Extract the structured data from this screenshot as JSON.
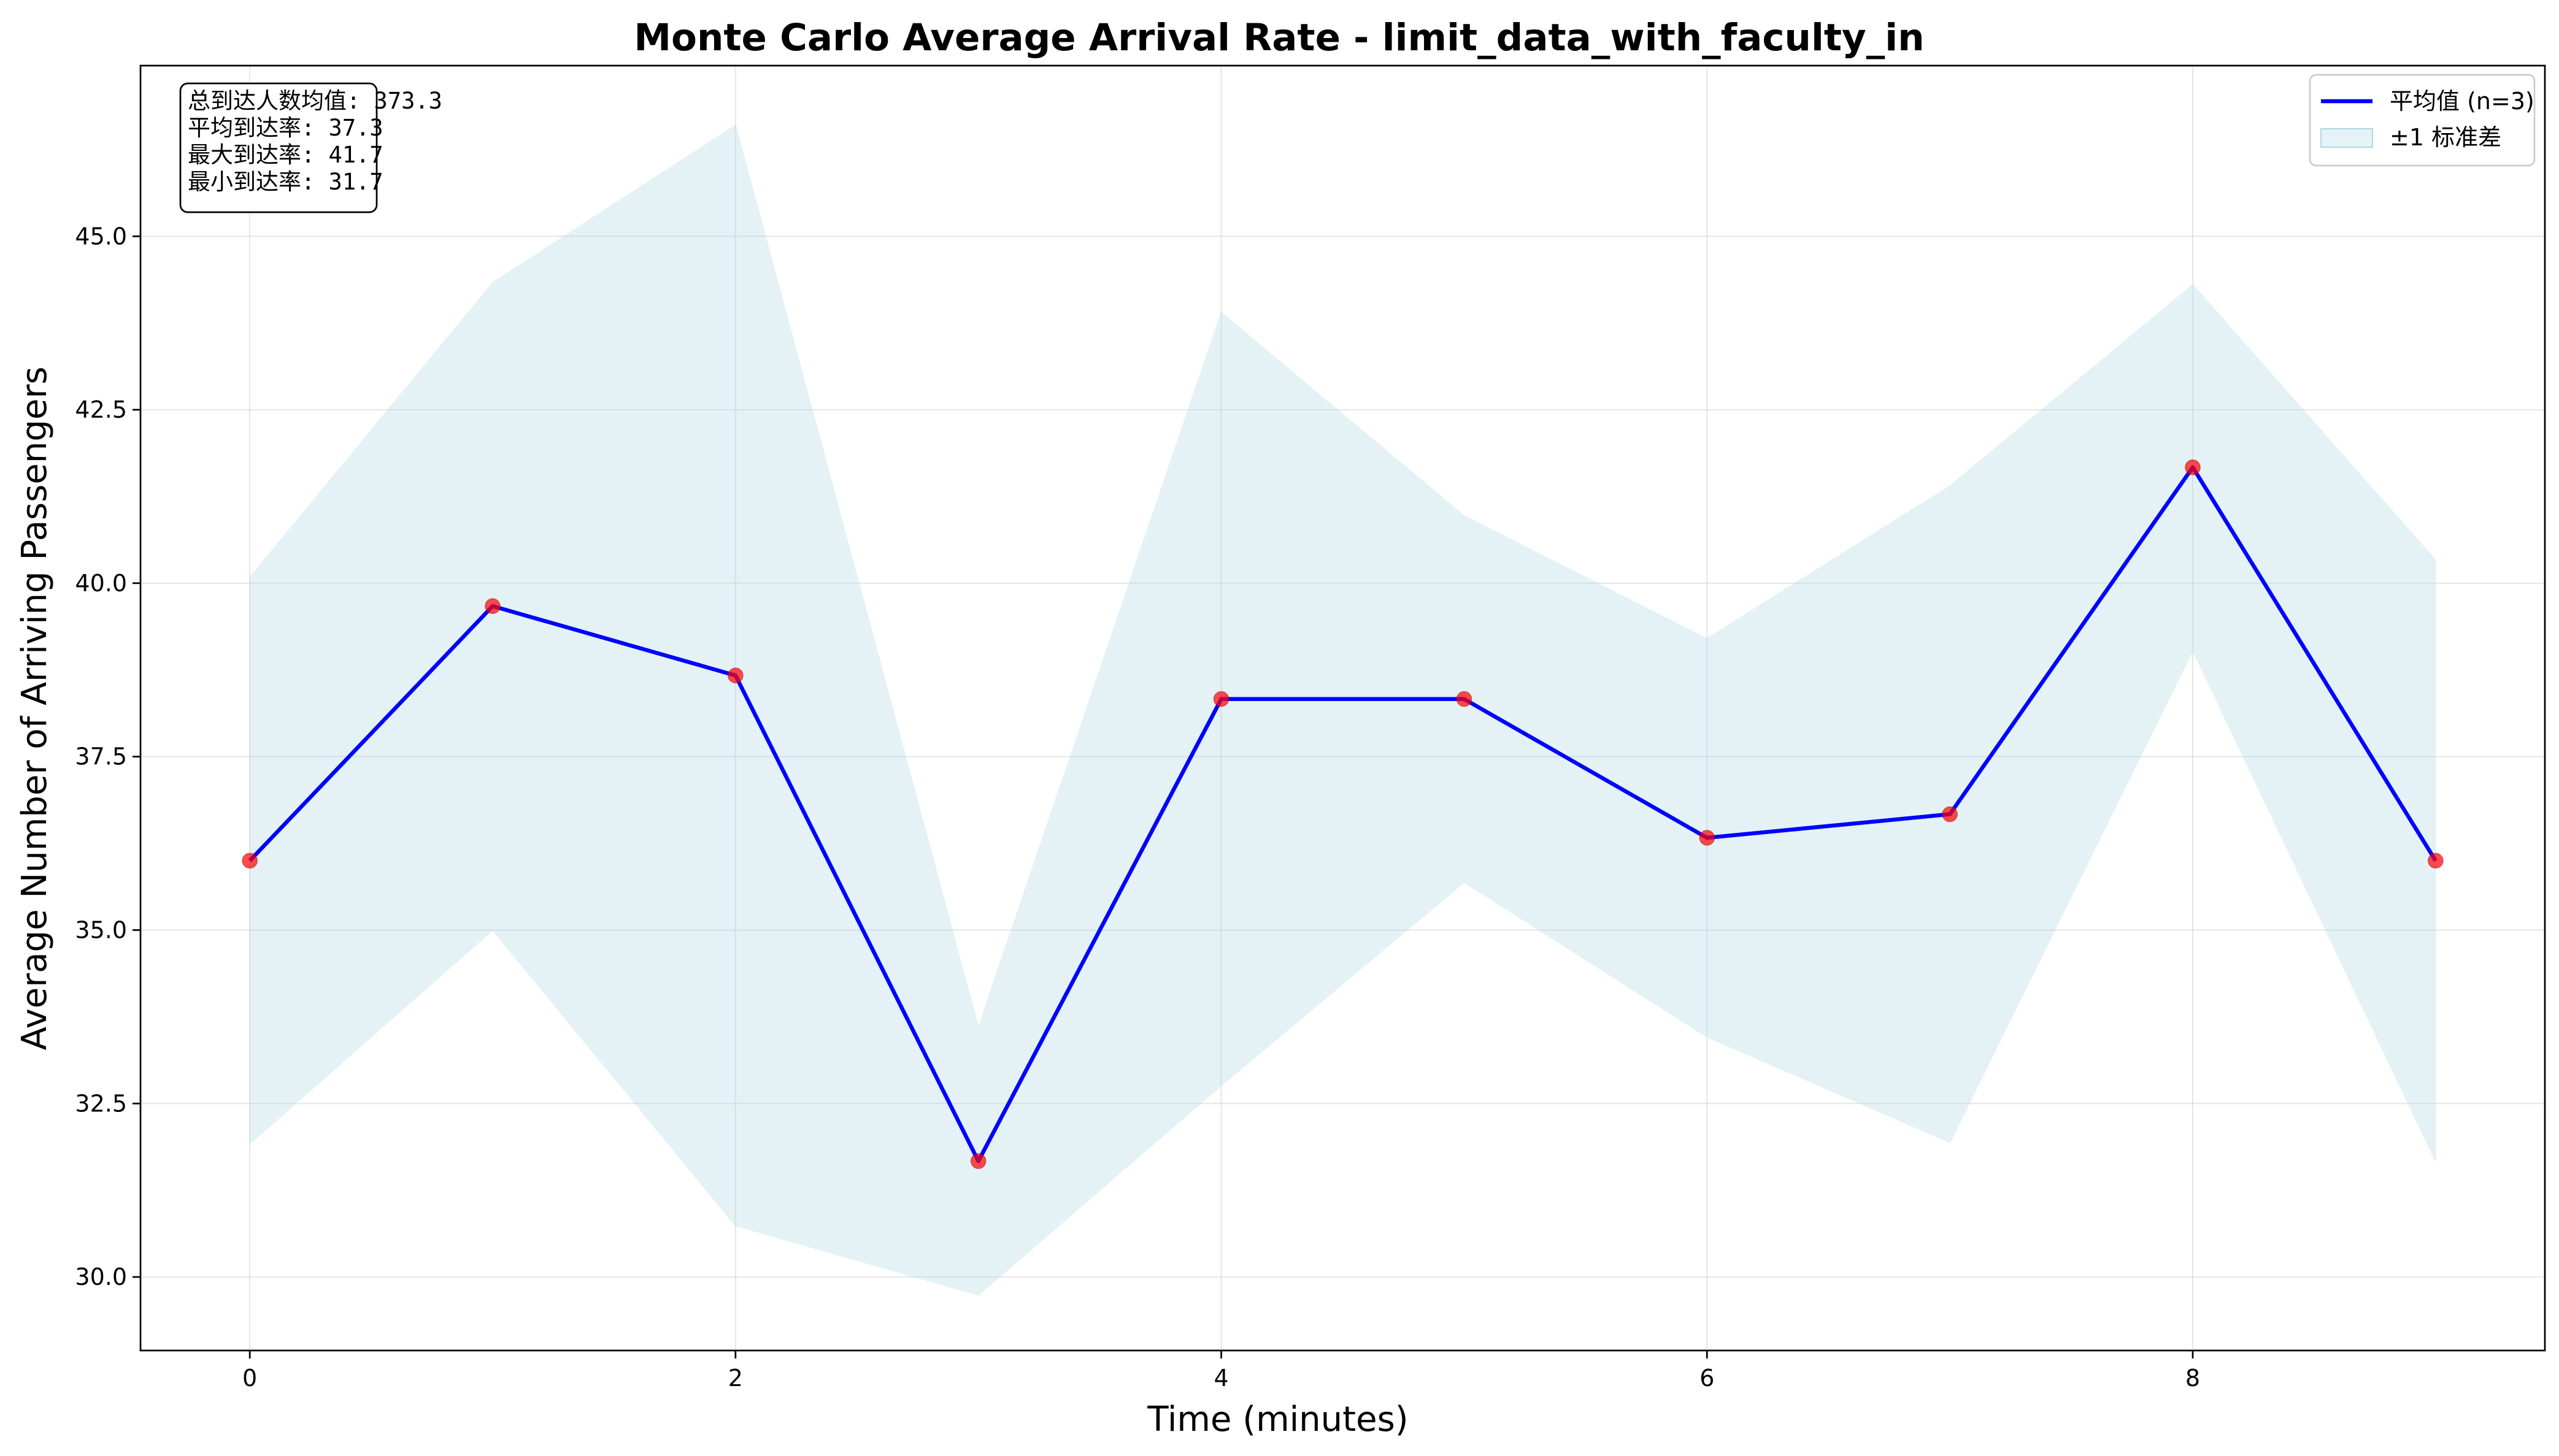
{
  "chart_data": {
    "type": "line",
    "title": "Monte Carlo Average Arrival Rate - limit_data_with_faculty_in",
    "xlabel": "Time (minutes)",
    "ylabel": "Average Number of Arriving Passengers",
    "xlim": [
      -0.45,
      9.45
    ],
    "ylim": [
      28.94,
      47.46
    ],
    "xticks": [
      0,
      2,
      4,
      6,
      8
    ],
    "yticks": [
      30.0,
      32.5,
      35.0,
      37.5,
      40.0,
      42.5,
      45.0
    ],
    "xtick_labels": [
      "0",
      "2",
      "4",
      "6",
      "8"
    ],
    "ytick_labels": [
      "30.0",
      "32.5",
      "35.0",
      "37.5",
      "40.0",
      "42.5",
      "45.0"
    ],
    "grid": true,
    "x": [
      0,
      1,
      2,
      3,
      4,
      5,
      6,
      7,
      8,
      9
    ],
    "series": [
      {
        "name": "平均值 (n=3)",
        "values": [
          36.0,
          39.67,
          38.67,
          31.67,
          38.33,
          38.33,
          36.33,
          36.67,
          41.67,
          36.0
        ],
        "color": "#0000ff",
        "marker_color": "#ff0000"
      }
    ],
    "band": {
      "name": "±1 标准差",
      "upper": [
        40.08,
        44.33,
        46.6,
        33.6,
        43.9,
        40.97,
        39.2,
        41.4,
        44.3,
        40.33
      ],
      "lower": [
        31.92,
        35.0,
        30.74,
        29.74,
        32.76,
        35.69,
        33.46,
        31.94,
        39.03,
        31.67
      ],
      "color": "#add8e6"
    },
    "legend_placement": "top-right",
    "stats_box": {
      "placement": "top-left",
      "lines": [
        "总到达人数均值: 373.3",
        "平均到达率: 37.3",
        "最大到达率: 41.7",
        "最小到达率: 31.7"
      ]
    }
  }
}
